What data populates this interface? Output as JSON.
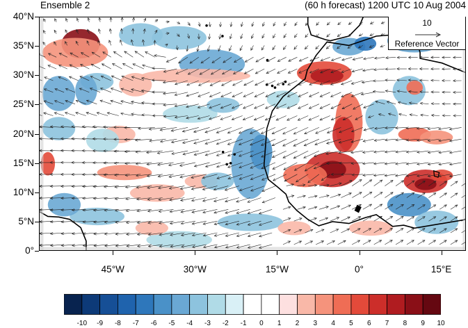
{
  "title": {
    "left": "Ensemble 2",
    "right": "(60 h forecast) 1200 UTC 10 Aug 2004"
  },
  "axes": {
    "lat_ticks": [
      "40°N",
      "35°N",
      "30°N",
      "25°N",
      "20°N",
      "15°N",
      "10°N",
      "5°N",
      "0°"
    ],
    "lon_ticks": [
      "45°W",
      "30°W",
      "15°W",
      "0°",
      "15°E"
    ]
  },
  "reference_vector": {
    "magnitude": "10",
    "label": "Reference Vector"
  },
  "colorbar": {
    "levels": [
      "-10",
      "-9",
      "-8",
      "-7",
      "-6",
      "-5",
      "-4",
      "-3",
      "-2",
      "-1",
      "0",
      "1",
      "2",
      "3",
      "4",
      "5",
      "6",
      "7",
      "8",
      "9",
      "10"
    ],
    "colors": [
      "#08234f",
      "#0d3a78",
      "#164f96",
      "#1f63ad",
      "#2e77bb",
      "#4a91c8",
      "#6aa8d4",
      "#8dc3de",
      "#b0dbe7",
      "#d9f0f6",
      "#ffffff",
      "#ffffff",
      "#fde0e0",
      "#f9b8a8",
      "#f5937c",
      "#ef6d55",
      "#e34a3a",
      "#cc2e2a",
      "#b01c20",
      "#8a0f17",
      "#650811"
    ]
  },
  "map": {
    "land_color": "#cfcfcf",
    "coast_color": "#000000",
    "vector_color": "#222222"
  }
}
